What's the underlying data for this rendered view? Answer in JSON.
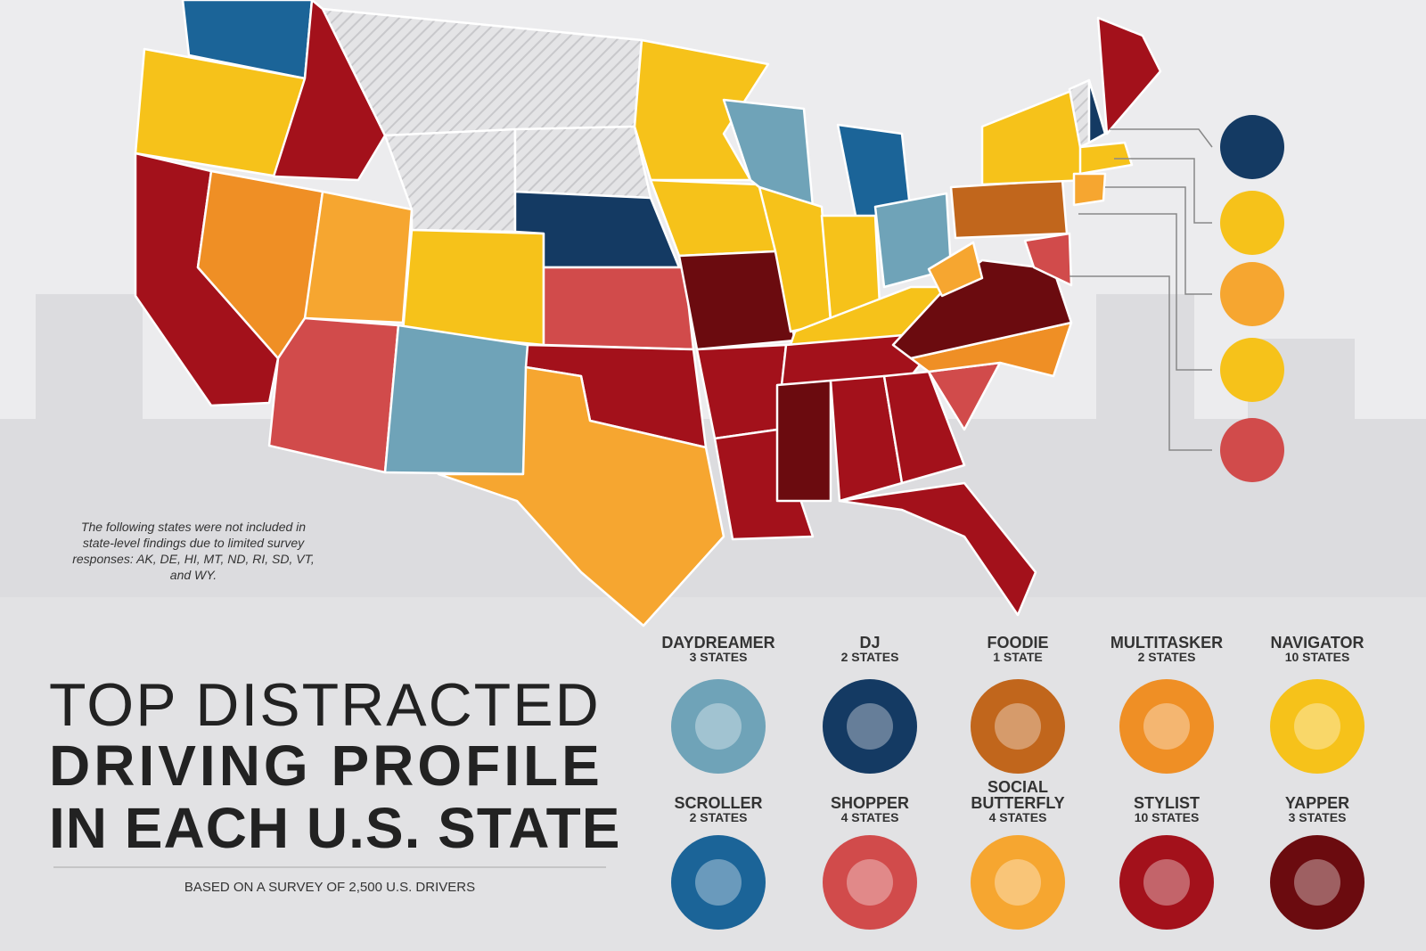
{
  "title": {
    "line1": "TOP DISTRACTED",
    "line2": "DRIVING PROFILE",
    "line3": "IN EACH U.S. STATE"
  },
  "subtitle": "BASED ON A SURVEY OF 2,500 U.S. DRIVERS",
  "note": "The following states were not included in state-level findings due to limited survey responses: AK, DE, HI, MT, ND, RI, SD, VT, and WY.",
  "legend": [
    {
      "name": "DAYDREAMER",
      "count": "3 STATES",
      "color": "#6fa3b8"
    },
    {
      "name": "DJ",
      "count": "2 STATES",
      "color": "#143a63"
    },
    {
      "name": "FOODIE",
      "count": "1 STATE",
      "color": "#c1661c"
    },
    {
      "name": "MULTITASKER",
      "count": "2 STATES",
      "color": "#ef8f25"
    },
    {
      "name": "NAVIGATOR",
      "count": "10 STATES",
      "color": "#f6c21a"
    },
    {
      "name": "SCROLLER",
      "count": "2 STATES",
      "color": "#1b6498"
    },
    {
      "name": "SHOPPER",
      "count": "4 STATES",
      "color": "#d14b4b"
    },
    {
      "name": "SOCIAL BUTTERFLY",
      "count": "4 STATES",
      "color": "#f6a630"
    },
    {
      "name": "STYLIST",
      "count": "10 STATES",
      "color": "#a3111b"
    },
    {
      "name": "YAPPER",
      "count": "3 STATES",
      "color": "#6b0b0f"
    }
  ]
}
